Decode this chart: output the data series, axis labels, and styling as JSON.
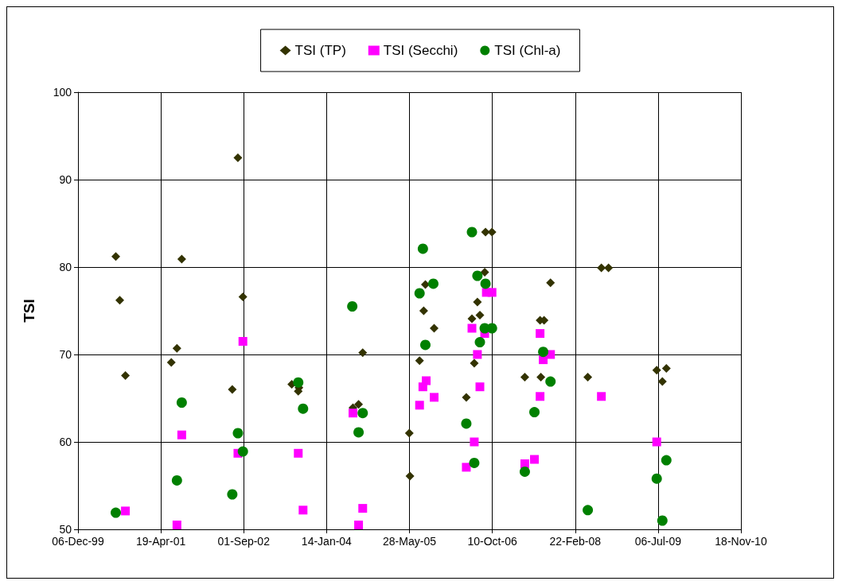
{
  "chart_data": {
    "type": "scatter",
    "ylabel": "TSI",
    "ylim": [
      50,
      100
    ],
    "yticks": [
      50,
      60,
      70,
      80,
      90,
      100
    ],
    "xlim": [
      "1999-12-06",
      "2010-11-18"
    ],
    "xticks": [
      {
        "value": "1999-12-06",
        "label": "06-Dec-99"
      },
      {
        "value": "2001-04-19",
        "label": "19-Apr-01"
      },
      {
        "value": "2002-09-01",
        "label": "01-Sep-02"
      },
      {
        "value": "2004-01-14",
        "label": "14-Jan-04"
      },
      {
        "value": "2005-05-28",
        "label": "28-May-05"
      },
      {
        "value": "2006-10-10",
        "label": "10-Oct-06"
      },
      {
        "value": "2008-02-22",
        "label": "22-Feb-08"
      },
      {
        "value": "2009-07-06",
        "label": "06-Jul-09"
      },
      {
        "value": "2010-11-18",
        "label": "18-Nov-10"
      }
    ],
    "grid": true,
    "legend": "top",
    "series": [
      {
        "name": "TSI (TP)",
        "color": "#333300",
        "marker": "diamond",
        "x": [
          "2000-07-21",
          "2000-08-14",
          "2000-09-17",
          "2001-06-21",
          "2001-07-25",
          "2001-08-23",
          "2002-06-24",
          "2002-07-28",
          "2002-08-27",
          "2003-06-18",
          "2003-07-27",
          "2003-07-31",
          "2004-06-21",
          "2004-07-25",
          "2004-08-19",
          "2005-05-27",
          "2005-05-31",
          "2005-07-28",
          "2005-08-22",
          "2005-09-01",
          "2005-10-24",
          "2006-05-06",
          "2006-06-09",
          "2006-06-23",
          "2006-07-12",
          "2006-07-27",
          "2006-08-25",
          "2006-08-30",
          "2006-10-08",
          "2007-04-24",
          "2007-07-25",
          "2007-07-30",
          "2007-08-18",
          "2007-09-26",
          "2008-05-08",
          "2008-07-29",
          "2008-09-10",
          "2009-06-28",
          "2009-08-01",
          "2009-08-25"
        ],
        "values": [
          81.2,
          76.2,
          67.6,
          69.1,
          70.7,
          80.9,
          66.0,
          92.5,
          76.6,
          66.6,
          65.8,
          66.2,
          63.9,
          64.3,
          70.2,
          61.0,
          56.1,
          69.3,
          75.0,
          78.0,
          73.0,
          65.1,
          74.1,
          69.0,
          76.0,
          74.5,
          79.4,
          84.0,
          84.0,
          67.4,
          73.9,
          67.4,
          73.9,
          78.2,
          67.4,
          79.9,
          79.9,
          68.2,
          66.9,
          68.4
        ]
      },
      {
        "name": "TSI (Secchi)",
        "color": "#ff00ff",
        "marker": "square",
        "x": [
          "2000-09-17",
          "2001-07-25",
          "2001-08-23",
          "2002-07-28",
          "2002-08-27",
          "2003-07-27",
          "2003-08-25",
          "2004-06-21",
          "2004-07-25",
          "2004-08-19",
          "2005-07-28",
          "2005-08-17",
          "2005-09-06",
          "2005-10-24",
          "2006-05-06",
          "2006-06-09",
          "2006-06-23",
          "2006-07-12",
          "2006-07-27",
          "2006-08-25",
          "2006-09-04",
          "2006-10-08",
          "2007-04-24",
          "2007-06-21",
          "2007-07-25",
          "2007-07-25",
          "2007-08-13",
          "2007-09-26",
          "2008-07-29",
          "2009-06-28"
        ],
        "values": [
          52.1,
          50.5,
          60.8,
          58.7,
          71.5,
          58.7,
          52.2,
          63.3,
          50.5,
          52.4,
          64.2,
          66.3,
          67.0,
          65.1,
          57.1,
          73.0,
          60.0,
          70.0,
          66.3,
          72.4,
          77.1,
          77.1,
          57.5,
          58.0,
          72.4,
          65.2,
          69.4,
          70.0,
          65.2,
          60.0
        ]
      },
      {
        "name": "TSI (Chl-a)",
        "color": "#008000",
        "marker": "circle",
        "x": [
          "2000-07-21",
          "2001-07-25",
          "2001-08-23",
          "2002-06-24",
          "2002-07-28",
          "2002-08-27",
          "2003-07-27",
          "2003-08-25",
          "2004-06-17",
          "2004-07-25",
          "2004-08-19",
          "2005-07-28",
          "2005-08-17",
          "2005-09-01",
          "2005-10-19",
          "2006-05-06",
          "2006-06-09",
          "2006-06-23",
          "2006-07-12",
          "2006-07-27",
          "2006-08-25",
          "2006-08-30",
          "2006-10-08",
          "2007-04-24",
          "2007-06-21",
          "2007-07-25",
          "2007-08-04",
          "2007-08-13",
          "2007-09-26",
          "2008-05-08",
          "2009-06-28",
          "2009-08-01",
          "2009-08-25"
        ],
        "values": [
          51.9,
          55.6,
          64.5,
          54.0,
          61.0,
          58.9,
          66.8,
          63.8,
          75.5,
          61.1,
          63.3,
          77.0,
          82.1,
          71.1,
          78.1,
          62.1,
          84.0,
          57.6,
          79.0,
          71.4,
          73.0,
          78.1,
          73.0,
          56.6,
          63.4,
          null,
          null,
          70.3,
          66.9,
          52.2,
          55.8,
          51.0,
          57.9
        ]
      }
    ]
  }
}
